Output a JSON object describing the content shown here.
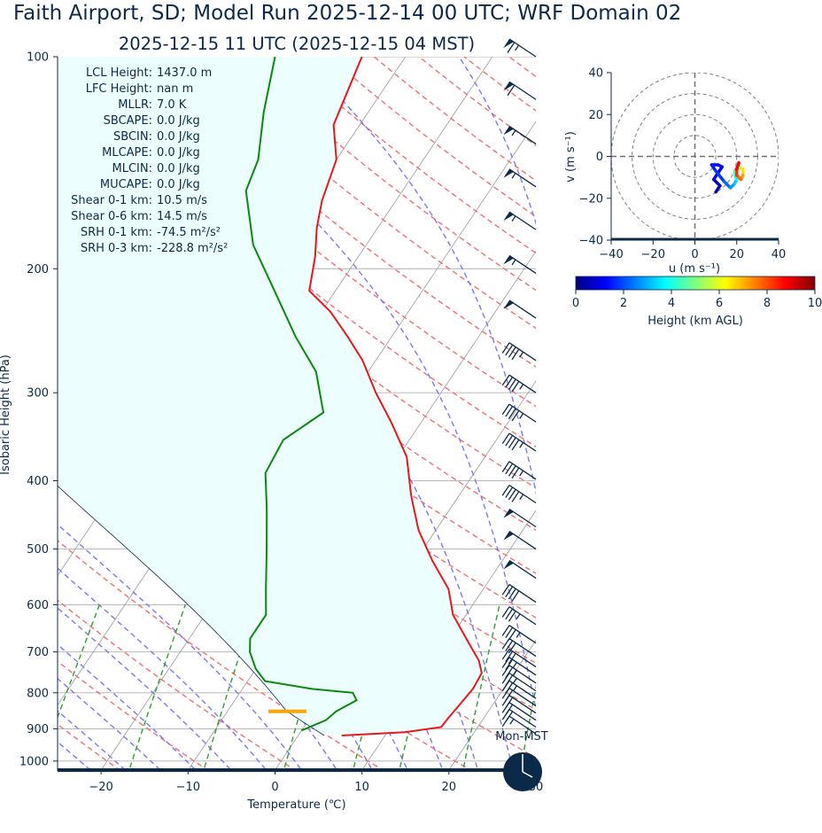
{
  "title": "Faith Airport, SD; Model Run 2025-12-14 00 UTC; WRF Domain 02",
  "subtitle": "2025-12-15 11 UTC  (2025-12-15 04 MST)",
  "colors": {
    "temperature": "#e8171a",
    "dewpoint": "#0a8a0a",
    "dry_adiabat": "#f07070",
    "moist_adiabat": "#7a7af0",
    "mixing_ratio": "#2ca02c",
    "isotherm": "#9a9a9a",
    "cape_fill": "#ecfefe",
    "text": "#0b2a4a",
    "lcl_marker": "#ffa500"
  },
  "chart_data": [
    {
      "type": "line",
      "kind": "skew-t",
      "xlabel": "Temperature (℃)",
      "ylabel": "Isobaric Height (hPa)",
      "xlim": [
        -25,
        30
      ],
      "ylim": [
        1030,
        100
      ],
      "y_scale": "log",
      "xticks": [
        -20,
        -10,
        0,
        10,
        20,
        30
      ],
      "xtick_labels": [
        "−20",
        "−10",
        "0",
        "10",
        "20",
        "30"
      ],
      "yticks": [
        100,
        200,
        300,
        400,
        500,
        600,
        700,
        800,
        900,
        1000
      ],
      "grid": true,
      "series": [
        {
          "role": "temperature",
          "points": [
            {
              "p": 920,
              "t": 5.0
            },
            {
              "p": 910,
              "t": 12.0
            },
            {
              "p": 895,
              "t": 15.8
            },
            {
              "p": 870,
              "t": 15.9
            },
            {
              "p": 830,
              "t": 16.2
            },
            {
              "p": 790,
              "t": 16.5
            },
            {
              "p": 750,
              "t": 16.3
            },
            {
              "p": 720,
              "t": 15.0
            },
            {
              "p": 680,
              "t": 12.5
            },
            {
              "p": 620,
              "t": 8.5
            },
            {
              "p": 570,
              "t": 6.0
            },
            {
              "p": 520,
              "t": 2.0
            },
            {
              "p": 470,
              "t": -2.0
            },
            {
              "p": 420,
              "t": -5.5
            },
            {
              "p": 370,
              "t": -9.0
            },
            {
              "p": 330,
              "t": -13.5
            },
            {
              "p": 300,
              "t": -17.5
            },
            {
              "p": 270,
              "t": -21.5
            },
            {
              "p": 250,
              "t": -25.0
            },
            {
              "p": 230,
              "t": -29.0
            },
            {
              "p": 215,
              "t": -33.0
            },
            {
              "p": 192,
              "t": -35.0
            },
            {
              "p": 175,
              "t": -37.0
            },
            {
              "p": 160,
              "t": -38.5
            },
            {
              "p": 140,
              "t": -40.0
            },
            {
              "p": 125,
              "t": -43.0
            },
            {
              "p": 100,
              "t": -45.0
            }
          ]
        },
        {
          "role": "dewpoint",
          "points": [
            {
              "p": 905,
              "t": 0.0
            },
            {
              "p": 875,
              "t": 2.0
            },
            {
              "p": 850,
              "t": 2.5
            },
            {
              "p": 820,
              "t": 4.0
            },
            {
              "p": 800,
              "t": 3.0
            },
            {
              "p": 790,
              "t": -2.0
            },
            {
              "p": 770,
              "t": -8.0
            },
            {
              "p": 740,
              "t": -10.0
            },
            {
              "p": 700,
              "t": -12.0
            },
            {
              "p": 670,
              "t": -13.0
            },
            {
              "p": 620,
              "t": -13.0
            },
            {
              "p": 570,
              "t": -15.0
            },
            {
              "p": 500,
              "t": -18.0
            },
            {
              "p": 440,
              "t": -21.0
            },
            {
              "p": 390,
              "t": -24.0
            },
            {
              "p": 350,
              "t": -24.5
            },
            {
              "p": 320,
              "t": -22.0
            },
            {
              "p": 280,
              "t": -26.0
            },
            {
              "p": 250,
              "t": -31.0
            },
            {
              "p": 215,
              "t": -37.0
            },
            {
              "p": 185,
              "t": -43.0
            },
            {
              "p": 155,
              "t": -48.0
            },
            {
              "p": 140,
              "t": -49.0
            },
            {
              "p": 120,
              "t": -52.0
            },
            {
              "p": 100,
              "t": -55.0
            }
          ]
        }
      ]
    },
    {
      "type": "line",
      "kind": "hodograph",
      "xlabel": "u (m s⁻¹)",
      "ylabel": "v (m s⁻¹)",
      "xlim": [
        -40,
        40
      ],
      "ylim": [
        -40,
        40
      ],
      "xticks": [
        -40,
        -20,
        0,
        20,
        40
      ],
      "yticks": [
        -40,
        -20,
        0,
        20,
        40
      ],
      "xtick_labels": [
        "−40",
        "−20",
        "0",
        "20",
        "40"
      ],
      "ytick_labels": [
        "−40",
        "−20",
        "0",
        "20",
        "40"
      ],
      "rings": [
        10,
        20,
        30,
        40
      ],
      "points": [
        {
          "u": 10,
          "v": -17,
          "z": 0.2
        },
        {
          "u": 12,
          "v": -14,
          "z": 0.5
        },
        {
          "u": 9,
          "v": -11,
          "z": 0.8
        },
        {
          "u": 11,
          "v": -8,
          "z": 1.0
        },
        {
          "u": 13,
          "v": -5,
          "z": 1.2
        },
        {
          "u": 11,
          "v": -4,
          "z": 1.3
        },
        {
          "u": 8,
          "v": -4,
          "z": 1.4
        },
        {
          "u": 10,
          "v": -7,
          "z": 1.6
        },
        {
          "u": 14,
          "v": -12,
          "z": 2.0
        },
        {
          "u": 17,
          "v": -15,
          "z": 2.5
        },
        {
          "u": 19,
          "v": -13,
          "z": 3.0
        },
        {
          "u": 20,
          "v": -11,
          "z": 3.5
        },
        {
          "u": 19,
          "v": -8,
          "z": 4.0
        },
        {
          "u": 21,
          "v": -5,
          "z": 5.0
        },
        {
          "u": 23,
          "v": -6,
          "z": 6.0
        },
        {
          "u": 23,
          "v": -9,
          "z": 7.0
        },
        {
          "u": 22,
          "v": -11,
          "z": 7.5
        },
        {
          "u": 20,
          "v": -9,
          "z": 8.0
        },
        {
          "u": 20,
          "v": -6,
          "z": 8.5
        },
        {
          "u": 21,
          "v": -3,
          "z": 9.0
        }
      ]
    }
  ],
  "colorbar": {
    "label": "Height (km AGL)",
    "range": [
      0,
      10
    ],
    "ticks": [
      0,
      2,
      4,
      6,
      8,
      10
    ],
    "colormap": [
      "#00007f",
      "#0000ff",
      "#007fff",
      "#00ffff",
      "#7fff7f",
      "#ffff00",
      "#ff7f00",
      "#ff0000",
      "#7f0000"
    ]
  },
  "indices": [
    {
      "label": "LCL Height:",
      "value": "1437.0 m"
    },
    {
      "label": "LFC Height:",
      "value": "nan m"
    },
    {
      "label": "MLLR:",
      "value": "7.0 K"
    },
    {
      "label": "SBCAPE:",
      "value": "0.0 J/kg"
    },
    {
      "label": "SBCIN:",
      "value": "0.0 J/kg"
    },
    {
      "label": "MLCAPE:",
      "value": "0.0 J/kg"
    },
    {
      "label": "MLCIN:",
      "value": "0.0 J/kg"
    },
    {
      "label": "MUCAPE:",
      "value": "0.0 J/kg"
    },
    {
      "label": "Shear 0-1 km:",
      "value": "10.5 m/s"
    },
    {
      "label": "Shear 0-6 km:",
      "value": "14.5 m/s"
    },
    {
      "label": "SRH 0-1 km:",
      "value": "-74.5 m²/s²"
    },
    {
      "label": "SRH 0-3 km:",
      "value": "-228.8 m²/s²"
    }
  ],
  "lcl_pressure": 850,
  "wind_barbs": [
    {
      "p": 100,
      "kt": 65
    },
    {
      "p": 115,
      "kt": 60
    },
    {
      "p": 133,
      "kt": 55
    },
    {
      "p": 153,
      "kt": 55
    },
    {
      "p": 176,
      "kt": 55
    },
    {
      "p": 203,
      "kt": 55
    },
    {
      "p": 235,
      "kt": 50
    },
    {
      "p": 270,
      "kt": 45
    },
    {
      "p": 300,
      "kt": 45
    },
    {
      "p": 330,
      "kt": 45
    },
    {
      "p": 363,
      "kt": 45
    },
    {
      "p": 398,
      "kt": 45
    },
    {
      "p": 430,
      "kt": 45
    },
    {
      "p": 465,
      "kt": 50
    },
    {
      "p": 500,
      "kt": 50
    },
    {
      "p": 550,
      "kt": 50
    },
    {
      "p": 595,
      "kt": 40
    },
    {
      "p": 640,
      "kt": 35
    },
    {
      "p": 680,
      "kt": 35
    },
    {
      "p": 710,
      "kt": 30
    },
    {
      "p": 735,
      "kt": 30
    },
    {
      "p": 755,
      "kt": 25
    },
    {
      "p": 775,
      "kt": 25
    },
    {
      "p": 795,
      "kt": 25
    },
    {
      "p": 815,
      "kt": 25
    },
    {
      "p": 835,
      "kt": 20
    },
    {
      "p": 855,
      "kt": 20
    },
    {
      "p": 875,
      "kt": 20
    },
    {
      "p": 895,
      "kt": 20
    },
    {
      "p": 915,
      "kt": 15
    }
  ],
  "clock": {
    "label": "Mon-MST"
  }
}
